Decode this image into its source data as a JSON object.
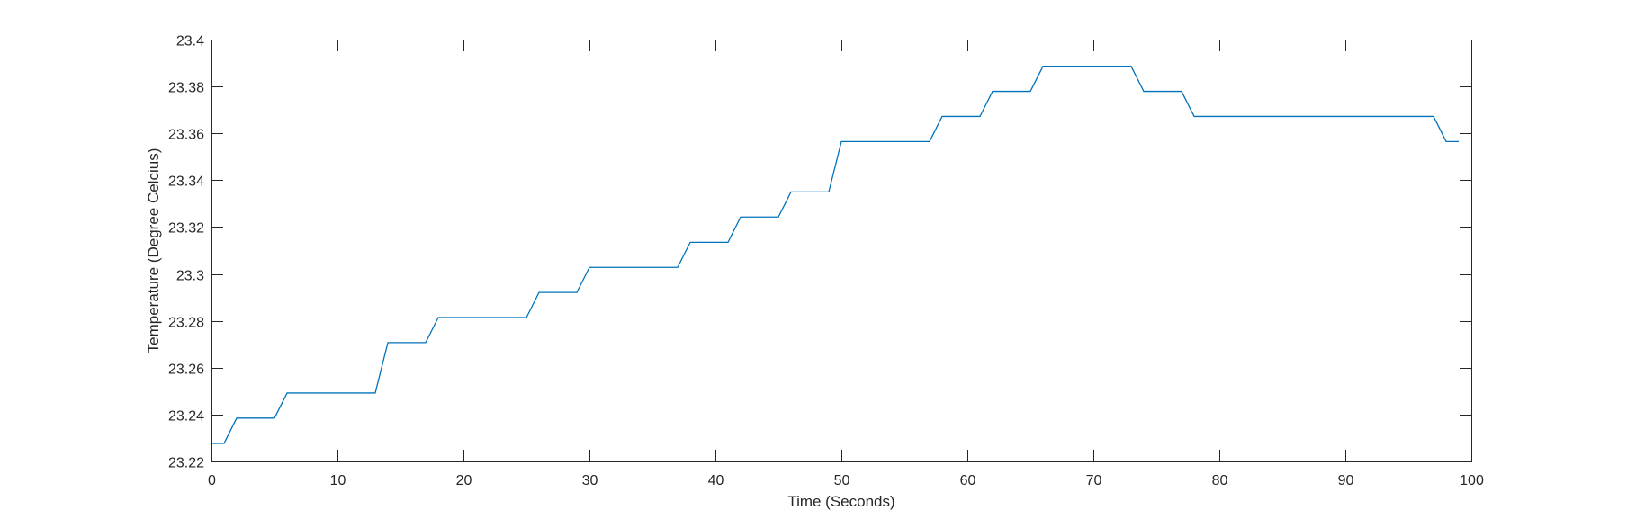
{
  "chart_data": {
    "type": "line",
    "xlabel": "Time (Seconds)",
    "ylabel": "Temperature (Degree Celcius)",
    "xlim": [
      0,
      100
    ],
    "ylim": [
      23.22,
      23.4
    ],
    "xticks": [
      0,
      10,
      20,
      30,
      40,
      50,
      60,
      70,
      80,
      90,
      100
    ],
    "xtick_labels": [
      "0",
      "10",
      "20",
      "30",
      "40",
      "50",
      "60",
      "70",
      "80",
      "90",
      "100"
    ],
    "yticks": [
      23.22,
      23.24,
      23.26,
      23.28,
      23.3,
      23.32,
      23.34,
      23.36,
      23.38,
      23.4
    ],
    "ytick_labels": [
      "23.22",
      "23.24",
      "23.26",
      "23.28",
      "23.3",
      "23.32",
      "23.34",
      "23.36",
      "23.38",
      "23.4"
    ],
    "grid": false,
    "line_color": "#0072BD",
    "series": [
      {
        "x": [
          0,
          1,
          2,
          3,
          4,
          5,
          6,
          7,
          8,
          9,
          10,
          11,
          12,
          13,
          14,
          15,
          16,
          17,
          18,
          19,
          20,
          21,
          22,
          23,
          24,
          25,
          26,
          27,
          28,
          29,
          30,
          31,
          32,
          33,
          34,
          35,
          36,
          37,
          38,
          39,
          40,
          41,
          42,
          43,
          44,
          45,
          46,
          47,
          48,
          49,
          50,
          51,
          52,
          53,
          54,
          55,
          56,
          57,
          58,
          59,
          60,
          61,
          62,
          63,
          64,
          65,
          66,
          67,
          68,
          69,
          70,
          71,
          72,
          73,
          74,
          75,
          76,
          77,
          78,
          79,
          80,
          81,
          82,
          83,
          84,
          85,
          86,
          87,
          88,
          89,
          90,
          91,
          92,
          93,
          94,
          95,
          96,
          97,
          98,
          99
        ],
        "y": [
          23.2277,
          23.2277,
          23.2385,
          23.2385,
          23.2385,
          23.2385,
          23.2492,
          23.2492,
          23.2492,
          23.2492,
          23.2492,
          23.2492,
          23.2492,
          23.2492,
          23.2707,
          23.2707,
          23.2707,
          23.2707,
          23.2814,
          23.2814,
          23.2814,
          23.2814,
          23.2814,
          23.2814,
          23.2814,
          23.2814,
          23.2921,
          23.2921,
          23.2921,
          23.2921,
          23.3028,
          23.3028,
          23.3028,
          23.3028,
          23.3028,
          23.3028,
          23.3028,
          23.3028,
          23.3135,
          23.3135,
          23.3135,
          23.3135,
          23.3243,
          23.3243,
          23.3243,
          23.3243,
          23.335,
          23.335,
          23.335,
          23.335,
          23.3565,
          23.3565,
          23.3565,
          23.3565,
          23.3565,
          23.3565,
          23.3565,
          23.3565,
          23.3672,
          23.3672,
          23.3672,
          23.3672,
          23.3779,
          23.3779,
          23.3779,
          23.3779,
          23.3886,
          23.3886,
          23.3886,
          23.3886,
          23.3886,
          23.3886,
          23.3886,
          23.3886,
          23.3779,
          23.3779,
          23.3779,
          23.3779,
          23.3672,
          23.3672,
          23.3672,
          23.3672,
          23.3672,
          23.3672,
          23.3672,
          23.3672,
          23.3672,
          23.3672,
          23.3672,
          23.3672,
          23.3672,
          23.3672,
          23.3672,
          23.3672,
          23.3672,
          23.3672,
          23.3672,
          23.3672,
          23.3565,
          23.3565
        ]
      }
    ]
  }
}
